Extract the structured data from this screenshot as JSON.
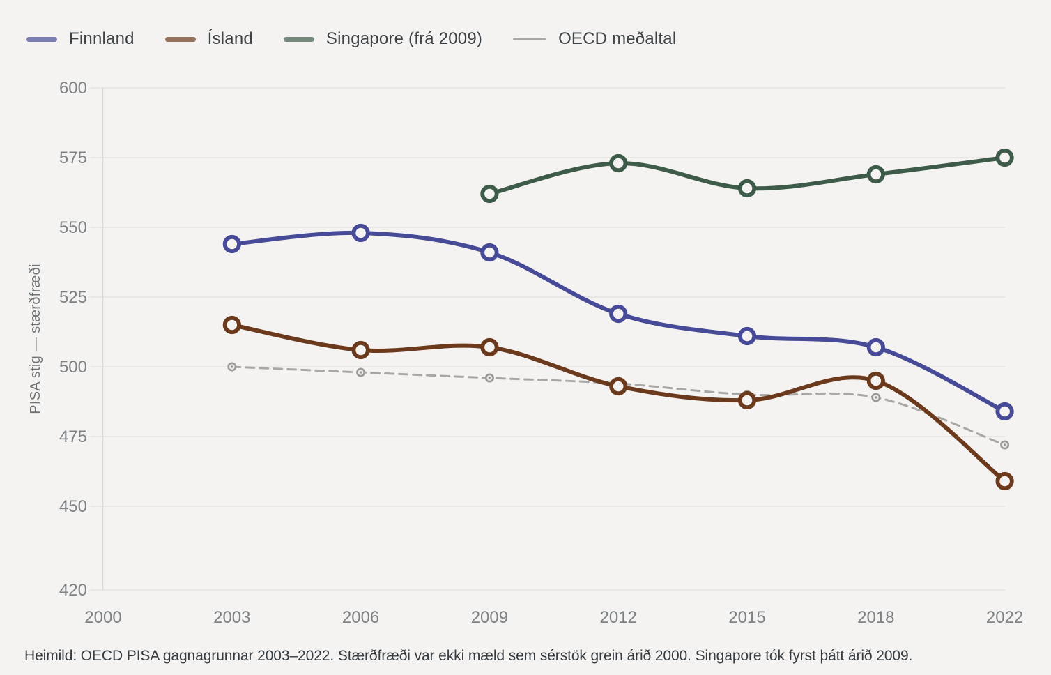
{
  "colors": {
    "background": "#f4f3f1",
    "gridline": "#e4e3e0",
    "axis_line": "#d9d8d5",
    "tick_text": "#7f8285",
    "legend_text": "#3e4347",
    "footer_text": "#373c41",
    "finnland": "#474b97",
    "island": "#6b3a1d",
    "singapore": "#3d5b48",
    "oecd": "#a8a7a4",
    "oecd_marker": "#9b9a97"
  },
  "chart_data": {
    "type": "line",
    "title": "",
    "xlabel": "",
    "ylabel": "PISA stig — stærðfræði",
    "categories": [
      2000,
      2003,
      2006,
      2009,
      2012,
      2015,
      2018,
      2022
    ],
    "y_ticks": [
      600,
      575,
      550,
      525,
      500,
      475,
      450,
      420
    ],
    "ylim": [
      420,
      600
    ],
    "grid": "horizontal-only",
    "legend_position": "top-left",
    "series": [
      {
        "name": "OECD meðaltal",
        "color": "#a8a7a4",
        "marker_color": "#9b9a97",
        "dash": "dashed",
        "values": [
          null,
          500,
          498,
          496,
          494,
          490,
          489,
          472
        ]
      },
      {
        "name": "Singapore (frá 2009)",
        "color": "#3d5b48",
        "dash": "solid",
        "values": [
          null,
          null,
          null,
          562,
          573,
          564,
          569,
          575
        ]
      },
      {
        "name": "Ísland",
        "color": "#6b3a1d",
        "dash": "solid",
        "values": [
          null,
          515,
          506,
          507,
          493,
          488,
          495,
          459
        ]
      },
      {
        "name": "Finnland",
        "color": "#474b97",
        "dash": "solid",
        "values": [
          null,
          544,
          548,
          541,
          519,
          511,
          507,
          484
        ]
      }
    ],
    "legend_order": [
      "Finnland",
      "Ísland",
      "Singapore (frá 2009)",
      "OECD meðaltal"
    ]
  },
  "footer": {
    "text": "Heimild: OECD PISA gagnagrunnar 2003–2022. Stærðfræði var ekki mæld sem sérstök grein árið 2000. Singapore tók fyrst þátt árið 2009."
  }
}
